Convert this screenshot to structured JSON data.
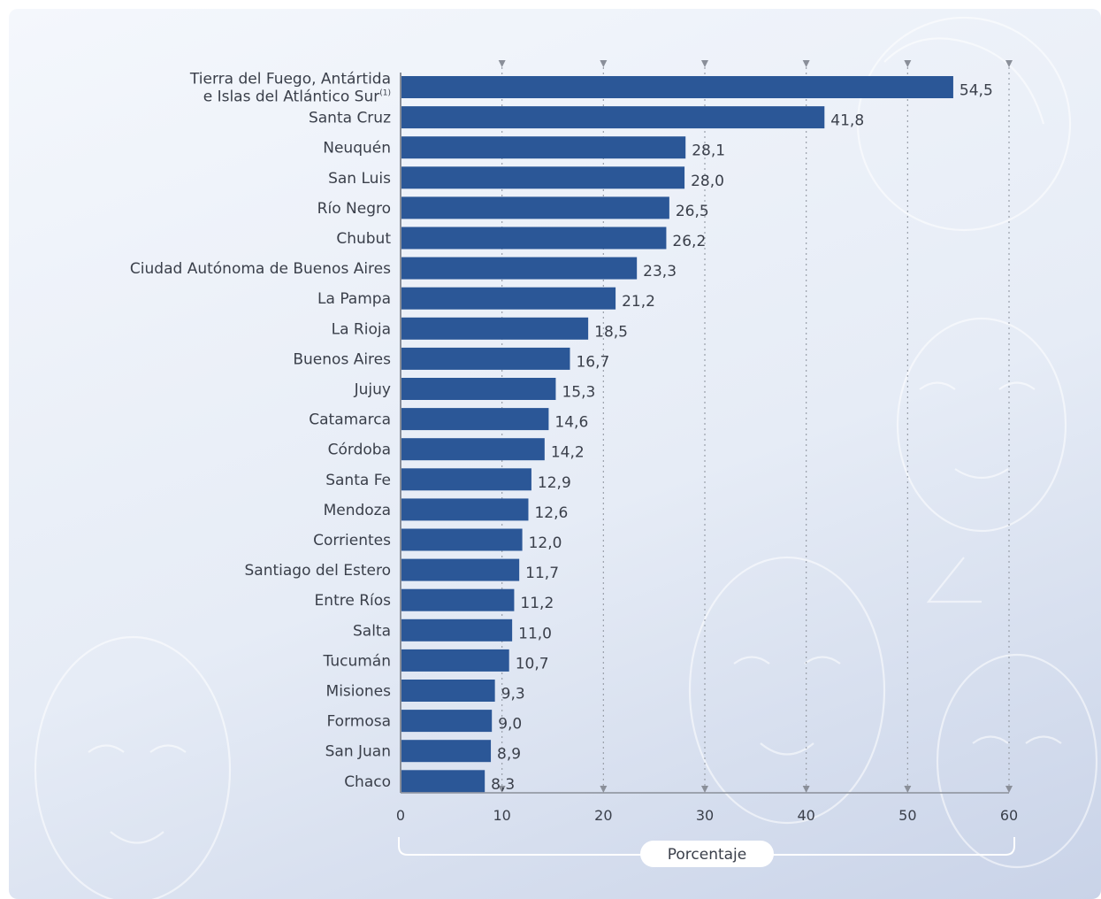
{
  "chart_data": {
    "type": "bar",
    "orientation": "horizontal",
    "categories": [
      [
        "Tierra del Fuego, Antártida",
        "e Islas del Atlántico Sur"
      ],
      "Santa Cruz",
      "Neuquén",
      "San Luis",
      "Río Negro",
      "Chubut",
      "Ciudad Autónoma de Buenos Aires",
      "La Pampa",
      "La Rioja",
      "Buenos Aires",
      "Jujuy",
      "Catamarca",
      "Córdoba",
      "Santa Fe",
      "Mendoza",
      "Corrientes",
      "Santiago del Estero",
      "Entre Ríos",
      "Salta",
      "Tucumán",
      "Misiones",
      "Formosa",
      "San Juan",
      "Chaco"
    ],
    "values": [
      54.5,
      41.8,
      28.1,
      28.0,
      26.5,
      26.2,
      23.3,
      21.2,
      18.5,
      16.7,
      15.3,
      14.6,
      14.2,
      12.9,
      12.6,
      12.0,
      11.7,
      11.2,
      11.0,
      10.7,
      9.3,
      9.0,
      8.9,
      8.3
    ],
    "value_labels": [
      "54,5",
      "41,8",
      "28,1",
      "28,0",
      "26,5",
      "26,2",
      "23,3",
      "21,2",
      "18,5",
      "16,7",
      "15,3",
      "14,6",
      "14,2",
      "12,9",
      "12,6",
      "12,0",
      "11,7",
      "11,2",
      "11,0",
      "10,7",
      "9,3",
      "9,0",
      "8,9",
      "8,3"
    ],
    "first_label_footnote": "(1)",
    "xticks": [
      0,
      10,
      20,
      30,
      40,
      50,
      60
    ],
    "xlim": [
      0,
      60
    ],
    "xlabel": "Porcentaje",
    "grid": "vertical dotted",
    "bar_color": "#2b5797"
  }
}
